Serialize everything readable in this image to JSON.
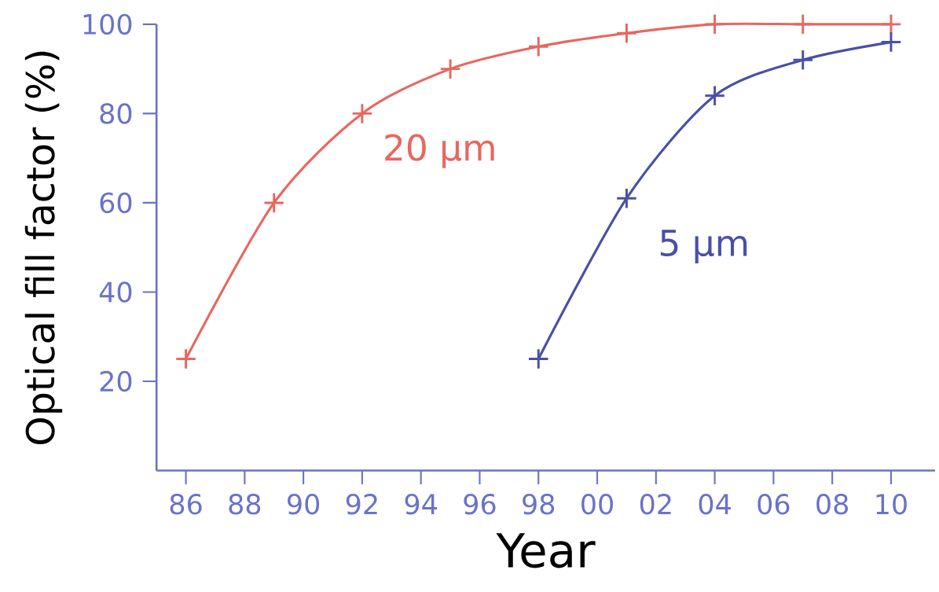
{
  "chart_data": {
    "type": "line",
    "xlabel": "Year",
    "ylabel": "Optical fill factor (%)",
    "xlim": [
      1985,
      2011.5
    ],
    "ylim": [
      0,
      100
    ],
    "xticks": [
      {
        "value": 1986,
        "label": "86"
      },
      {
        "value": 1988,
        "label": "88"
      },
      {
        "value": 1990,
        "label": "90"
      },
      {
        "value": 1992,
        "label": "92"
      },
      {
        "value": 1994,
        "label": "94"
      },
      {
        "value": 1996,
        "label": "96"
      },
      {
        "value": 1998,
        "label": "98"
      },
      {
        "value": 2000,
        "label": "00"
      },
      {
        "value": 2002,
        "label": "02"
      },
      {
        "value": 2004,
        "label": "04"
      },
      {
        "value": 2006,
        "label": "06"
      },
      {
        "value": 2008,
        "label": "08"
      },
      {
        "value": 2010,
        "label": "10"
      }
    ],
    "yticks": [
      20,
      40,
      60,
      80,
      100
    ],
    "marker": "cross",
    "grid": false,
    "legend": false,
    "series": [
      {
        "name": "20 µm",
        "color": "#e8675f",
        "x": [
          1986,
          1989,
          1992,
          1995,
          1998,
          2001,
          2004,
          2007,
          2010
        ],
        "values": [
          25,
          60,
          80,
          90,
          95,
          98,
          100,
          100,
          100
        ]
      },
      {
        "name": "5 µm",
        "color": "#4a4fa8",
        "x": [
          1998,
          2001,
          2004,
          2007,
          2010
        ],
        "values": [
          25,
          61,
          84,
          92,
          96
        ]
      }
    ]
  }
}
